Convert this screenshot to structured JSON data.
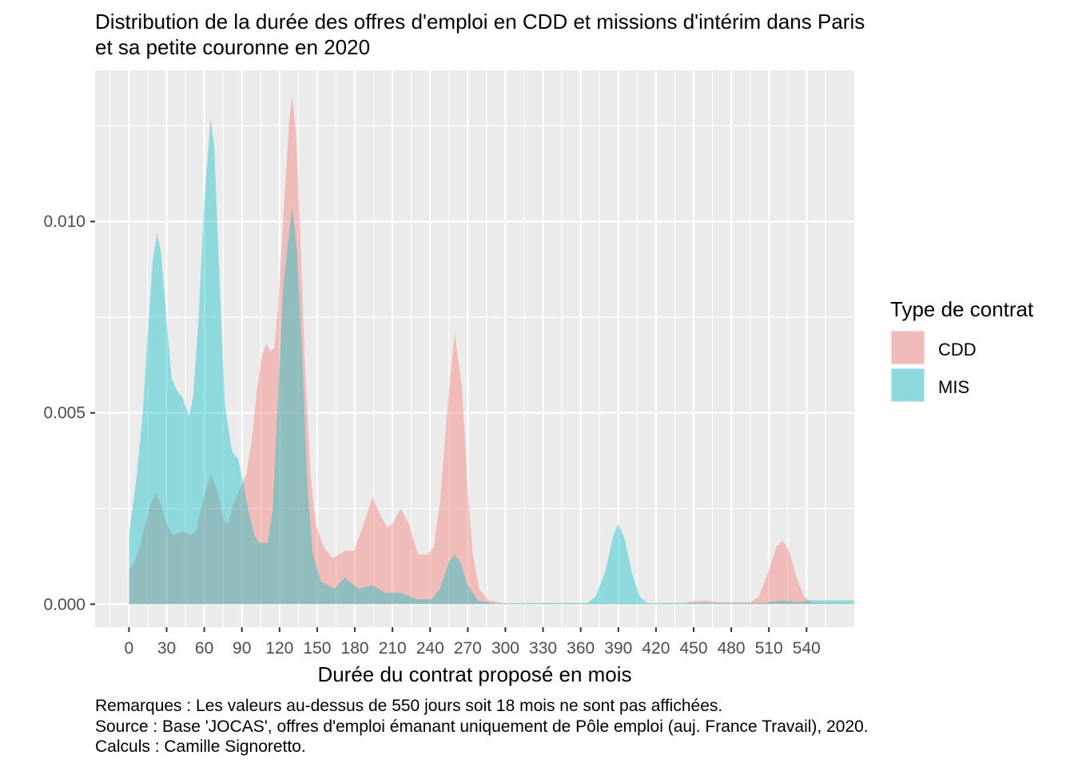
{
  "chart_data": {
    "type": "area",
    "title": [
      "Distribution de la durée des offres d'emploi en CDD et missions d'intérim dans Paris",
      "et sa petite couronne en 2020"
    ],
    "xlabel": "Durée du contrat proposé en mois",
    "ylabel": "",
    "xlim": [
      -27,
      578
    ],
    "ylim": [
      -0.0006,
      0.01395
    ],
    "x_ticks": [
      0,
      30,
      60,
      90,
      120,
      150,
      180,
      210,
      240,
      270,
      300,
      330,
      360,
      390,
      420,
      450,
      480,
      510,
      540
    ],
    "x_tick_labels": [
      "0",
      "30",
      "60",
      "90",
      "120",
      "150",
      "180",
      "210",
      "240",
      "270",
      "300",
      "330",
      "360",
      "390",
      "420",
      "450",
      "480",
      "510",
      "540"
    ],
    "y_ticks": [
      0,
      0.005,
      0.01
    ],
    "y_tick_labels": [
      "0.000",
      "0.005",
      "0.010"
    ],
    "grid": true,
    "legend": {
      "title": "Type de contrat",
      "placement": "right"
    },
    "series": [
      {
        "name": "CDD",
        "color": "#F8766D",
        "alpha": 0.4,
        "points": [
          [
            0,
            0.0009
          ],
          [
            4.5,
            0.0011
          ],
          [
            8.7,
            0.0015
          ],
          [
            13,
            0.0021
          ],
          [
            17,
            0.0026
          ],
          [
            21.8,
            0.0029
          ],
          [
            25.5,
            0.0026
          ],
          [
            30,
            0.0021
          ],
          [
            35,
            0.0018
          ],
          [
            42.6,
            0.0019
          ],
          [
            49,
            0.0018
          ],
          [
            53.3,
            0.0019
          ],
          [
            59.6,
            0.0028
          ],
          [
            65.4,
            0.0034
          ],
          [
            70,
            0.003
          ],
          [
            75.6,
            0.0022
          ],
          [
            79,
            0.0021
          ],
          [
            83,
            0.0026
          ],
          [
            88.3,
            0.003
          ],
          [
            93.6,
            0.0034
          ],
          [
            97.9,
            0.0043
          ],
          [
            102,
            0.0056
          ],
          [
            106,
            0.0065
          ],
          [
            109.5,
            0.0068
          ],
          [
            112.7,
            0.0066
          ],
          [
            116,
            0.0067
          ],
          [
            119,
            0.0079
          ],
          [
            123,
            0.0101
          ],
          [
            127.6,
            0.0126
          ],
          [
            130,
            0.01327
          ],
          [
            133,
            0.0124
          ],
          [
            136,
            0.0101
          ],
          [
            140,
            0.0065
          ],
          [
            144.6,
            0.0034
          ],
          [
            148.8,
            0.0021
          ],
          [
            155,
            0.0015
          ],
          [
            162.4,
            0.0012
          ],
          [
            172,
            0.0014
          ],
          [
            179.6,
            0.0014
          ],
          [
            187,
            0.0021
          ],
          [
            194,
            0.0028
          ],
          [
            200.6,
            0.0023
          ],
          [
            206,
            0.002
          ],
          [
            210,
            0.0021
          ],
          [
            216.5,
            0.0025
          ],
          [
            223,
            0.0021
          ],
          [
            230.5,
            0.0013
          ],
          [
            238,
            0.0013
          ],
          [
            243,
            0.0015
          ],
          [
            248,
            0.0027
          ],
          [
            254,
            0.0052
          ],
          [
            259.6,
            0.0071
          ],
          [
            265.5,
            0.0056
          ],
          [
            270,
            0.003
          ],
          [
            274,
            0.0013
          ],
          [
            279,
            0.0004
          ],
          [
            286.5,
            0.0001
          ],
          [
            300,
            2e-05
          ],
          [
            440,
            2e-05
          ],
          [
            450,
            8e-05
          ],
          [
            460,
            0.0001
          ],
          [
            470,
            5e-05
          ],
          [
            495,
            5e-05
          ],
          [
            502,
            0.0002
          ],
          [
            510,
            0.0009
          ],
          [
            516,
            0.0015
          ],
          [
            521,
            0.00167
          ],
          [
            526,
            0.0014
          ],
          [
            532,
            0.0007
          ],
          [
            538,
            0.0002
          ],
          [
            545,
            3e-05
          ],
          [
            578,
            1e-05
          ]
        ]
      },
      {
        "name": "MIS",
        "color": "#00BFC4",
        "alpha": 0.4,
        "points": [
          [
            0,
            0.0018
          ],
          [
            6.4,
            0.0034
          ],
          [
            11,
            0.005
          ],
          [
            15,
            0.0071
          ],
          [
            19,
            0.009
          ],
          [
            22.5,
            0.0097
          ],
          [
            25.5,
            0.0092
          ],
          [
            30,
            0.0074
          ],
          [
            34,
            0.0059
          ],
          [
            38,
            0.0056
          ],
          [
            42.6,
            0.0054
          ],
          [
            48,
            0.0049
          ],
          [
            51,
            0.0054
          ],
          [
            55.4,
            0.0074
          ],
          [
            59.6,
            0.0103
          ],
          [
            65,
            0.0127
          ],
          [
            68,
            0.0119
          ],
          [
            72.4,
            0.0083
          ],
          [
            76.4,
            0.0052
          ],
          [
            82,
            0.004
          ],
          [
            87,
            0.0038
          ],
          [
            91.5,
            0.0031
          ],
          [
            95.5,
            0.0024
          ],
          [
            100,
            0.0018
          ],
          [
            104,
            0.0016
          ],
          [
            110.6,
            0.0016
          ],
          [
            114.6,
            0.0025
          ],
          [
            119,
            0.0056
          ],
          [
            123,
            0.0083
          ],
          [
            130,
            0.0104
          ],
          [
            134,
            0.0092
          ],
          [
            138,
            0.0065
          ],
          [
            142.4,
            0.003
          ],
          [
            146.6,
            0.0013
          ],
          [
            153,
            0.0006
          ],
          [
            163.6,
            0.0004
          ],
          [
            172,
            0.0007
          ],
          [
            183,
            0.0004
          ],
          [
            194,
            0.0005
          ],
          [
            204,
            0.0003
          ],
          [
            216.5,
            0.0003
          ],
          [
            229,
            0.00013
          ],
          [
            241,
            0.00013
          ],
          [
            248,
            0.0004
          ],
          [
            255,
            0.0011
          ],
          [
            259.6,
            0.0013
          ],
          [
            264,
            0.0011
          ],
          [
            270,
            0.0005
          ],
          [
            278,
            0.0001
          ],
          [
            290,
            2e-05
          ],
          [
            325,
            3e-05
          ],
          [
            335,
            3e-05
          ],
          [
            365,
            3e-05
          ],
          [
            372,
            0.0002
          ],
          [
            380,
            0.0009
          ],
          [
            386,
            0.0018
          ],
          [
            390,
            0.0021
          ],
          [
            395,
            0.0017
          ],
          [
            401,
            0.0008
          ],
          [
            407,
            0.0002
          ],
          [
            413,
            3e-05
          ],
          [
            505,
            3e-05
          ],
          [
            520,
            0.0001
          ],
          [
            535,
            5e-05
          ],
          [
            540,
            0.0001
          ],
          [
            578,
            0.0001
          ]
        ]
      }
    ]
  },
  "caption": [
    "Remarques : Les valeurs au-dessus de 550 jours soit 18 mois ne sont pas affichées.",
    "Source : Base 'JOCAS', offres d'emploi émanant uniquement de Pôle emploi (auj. France Travail), 2020.",
    "Calculs : Camille Signoretto."
  ]
}
